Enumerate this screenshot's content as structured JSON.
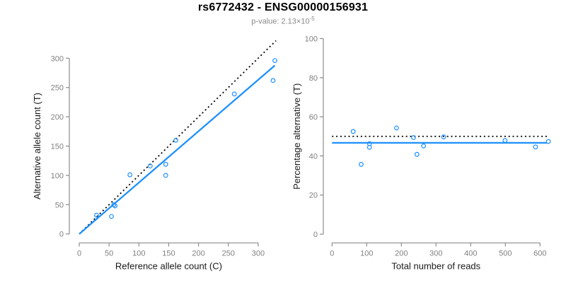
{
  "header": {
    "title": "rs6772432 - ENSG00000156931",
    "p_prefix": "p-value: 2.13×10",
    "p_exponent": "-5"
  },
  "colors": {
    "accent_blue": "#1E90FF",
    "dotted_black": "#000000",
    "axis_line": "#8c8c8c",
    "tick_label": "#808080",
    "axis_title_text": "#1a1a1a",
    "subtitle_text": "#8a8a8a",
    "background": "#ffffff"
  },
  "chart_data": [
    {
      "type": "scatter",
      "name": "allele-counts-scatter",
      "xlabel": "Reference allele count (C)",
      "ylabel": "Alternative allele count (T)",
      "xlim": [
        0,
        330
      ],
      "ylim": [
        0,
        330
      ],
      "xticks": [
        0,
        50,
        100,
        150,
        200,
        250,
        300
      ],
      "yticks": [
        0,
        50,
        100,
        150,
        200,
        250,
        300
      ],
      "grid": false,
      "legend": "none",
      "points": [
        [
          29,
          32
        ],
        [
          54,
          30
        ],
        [
          58,
          50
        ],
        [
          60,
          48
        ],
        [
          85,
          101
        ],
        [
          119,
          116
        ],
        [
          145,
          100
        ],
        [
          145,
          119
        ],
        [
          162,
          160
        ],
        [
          260,
          239
        ],
        [
          325,
          262
        ],
        [
          328,
          296
        ]
      ],
      "lines": [
        {
          "name": "expected-50-50-line",
          "style": "dotted",
          "color": "#000000",
          "x1": 0,
          "y1": 0,
          "x2": 330,
          "y2": 330
        },
        {
          "name": "fitted-proportion-line",
          "style": "solid",
          "color": "#1E90FF",
          "x1": 0,
          "y1": 0,
          "x2": 328,
          "y2": 287.7
        }
      ]
    },
    {
      "type": "scatter",
      "name": "percentage-vs-coverage-scatter",
      "xlabel": "Total number of reads",
      "ylabel": "Percentage alternative (T)",
      "xlim": [
        0,
        620
      ],
      "ylim": [
        0,
        100
      ],
      "xticks": [
        0,
        100,
        200,
        300,
        400,
        500,
        600
      ],
      "yticks": [
        0,
        20,
        40,
        60,
        80,
        100
      ],
      "grid": false,
      "legend": "none",
      "points": [
        [
          61,
          52.5
        ],
        [
          84,
          35.7
        ],
        [
          108,
          46.3
        ],
        [
          108,
          44.4
        ],
        [
          186,
          54.3
        ],
        [
          235,
          49.4
        ],
        [
          245,
          40.8
        ],
        [
          264,
          45.1
        ],
        [
          322,
          49.7
        ],
        [
          499,
          47.9
        ],
        [
          587,
          44.6
        ],
        [
          624,
          47.4
        ]
      ],
      "lines": [
        {
          "name": "expected-50-percent-line",
          "style": "dotted",
          "color": "#000000",
          "x1": 0,
          "y1": 50,
          "x2": 620,
          "y2": 50
        },
        {
          "name": "fitted-percentage-line",
          "style": "solid",
          "color": "#1E90FF",
          "x1": 0,
          "y1": 46.7,
          "x2": 620,
          "y2": 46.7
        }
      ]
    }
  ]
}
